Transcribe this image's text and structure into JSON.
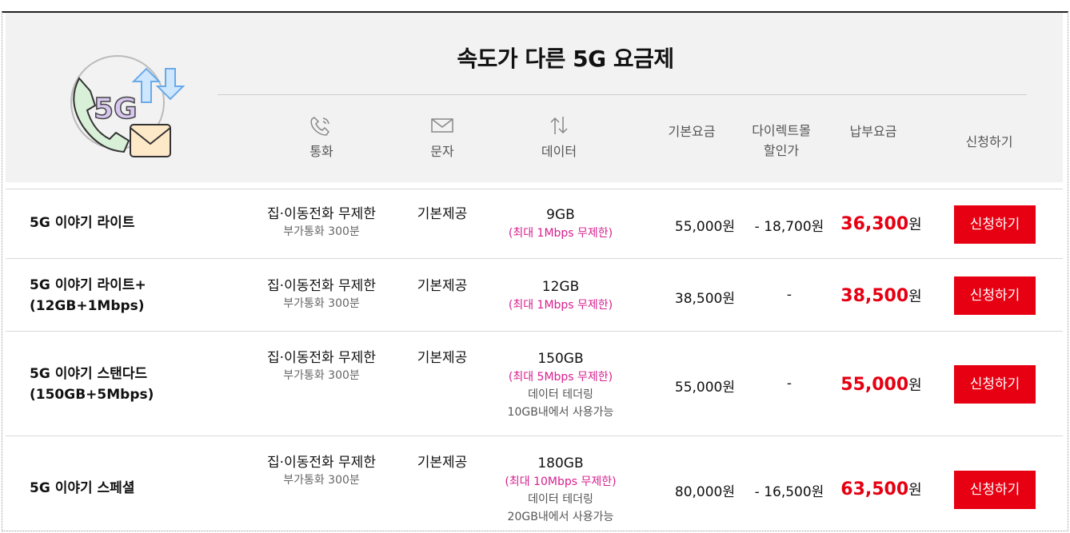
{
  "header": {
    "title": "속도가 다른 5G 요금제",
    "logo_text": "5G",
    "columns": {
      "call": "통화",
      "sms": "문자",
      "data": "데이터",
      "base_fee": "기본요금",
      "discount_line1": "다이렉트몰",
      "discount_line2": "할인가",
      "pay_fee": "납부요금",
      "apply": "신청하기"
    },
    "icons": [
      "phone-icon",
      "envelope-icon",
      "updown-arrows-icon"
    ]
  },
  "plans": [
    {
      "name_line1": "5G 이야기 라이트",
      "name_line2": "",
      "call_main": "집·이동전화 무제한",
      "call_sub": "부가통화 300분",
      "sms": "기본제공",
      "data_amount": "9GB",
      "data_speed": "(최대 1Mbps 무제한)",
      "tethering_line1": "",
      "tethering_line2": "",
      "base_fee": "55,000원",
      "discount": "- 18,700원",
      "pay_amount": "36,300",
      "pay_unit": "원",
      "apply_label": "신청하기"
    },
    {
      "name_line1": "5G 이야기 라이트+",
      "name_line2": "(12GB+1Mbps)",
      "call_main": "집·이동전화 무제한",
      "call_sub": "부가통화 300분",
      "sms": "기본제공",
      "data_amount": "12GB",
      "data_speed": "(최대 1Mbps 무제한)",
      "tethering_line1": "",
      "tethering_line2": "",
      "base_fee": "38,500원",
      "discount": "-",
      "pay_amount": "38,500",
      "pay_unit": "원",
      "apply_label": "신청하기"
    },
    {
      "name_line1": "5G 이야기 스탠다드",
      "name_line2": "(150GB+5Mbps)",
      "call_main": "집·이동전화 무제한",
      "call_sub": "부가통화 300분",
      "sms": "기본제공",
      "data_amount": "150GB",
      "data_speed": "(최대 5Mbps 무제한)",
      "tethering_line1": "데이터 테더링",
      "tethering_line2": "10GB내에서 사용가능",
      "base_fee": "55,000원",
      "discount": "-",
      "pay_amount": "55,000",
      "pay_unit": "원",
      "apply_label": "신청하기"
    },
    {
      "name_line1": "5G 이야기 스페셜",
      "name_line2": "",
      "call_main": "집·이동전화 무제한",
      "call_sub": "부가통화 300분",
      "sms": "기본제공",
      "data_amount": "180GB",
      "data_speed": "(최대 10Mbps 무제한)",
      "tethering_line1": "데이터 테더링",
      "tethering_line2": "20GB내에서 사용가능",
      "base_fee": "80,000원",
      "discount": "- 16,500원",
      "pay_amount": "63,500",
      "pay_unit": "원",
      "apply_label": "신청하기"
    }
  ],
  "colors": {
    "accent": "#e60012",
    "speed": "#d6208e",
    "header_bg": "#f2f2f2"
  }
}
